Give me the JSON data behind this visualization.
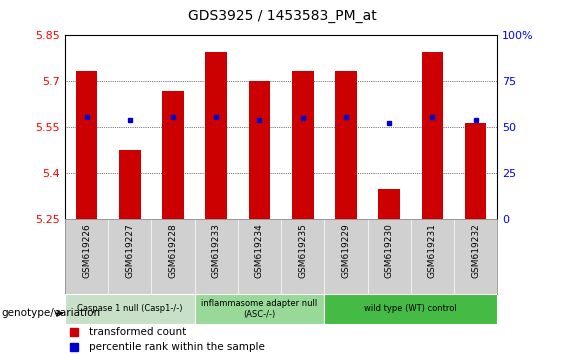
{
  "title": "GDS3925 / 1453583_PM_at",
  "samples": [
    "GSM619226",
    "GSM619227",
    "GSM619228",
    "GSM619233",
    "GSM619234",
    "GSM619235",
    "GSM619229",
    "GSM619230",
    "GSM619231",
    "GSM619232"
  ],
  "red_values": [
    5.735,
    5.475,
    5.67,
    5.795,
    5.7,
    5.735,
    5.735,
    5.35,
    5.795,
    5.565
  ],
  "blue_values": [
    5.585,
    5.575,
    5.585,
    5.585,
    5.575,
    5.58,
    5.585,
    5.565,
    5.585,
    5.575
  ],
  "y_min": 5.25,
  "y_max": 5.85,
  "y_ticks": [
    5.25,
    5.4,
    5.55,
    5.7,
    5.85
  ],
  "y_tick_labels": [
    "5.25",
    "5.4",
    "5.55",
    "5.7",
    "5.85"
  ],
  "right_y_ticks": [
    0,
    25,
    50,
    75,
    100
  ],
  "right_y_tick_labels": [
    "0",
    "25",
    "50",
    "75",
    "100%"
  ],
  "bar_color": "#cc0000",
  "dot_color": "#0000cc",
  "bg_color": "#d0d0d0",
  "legend_label_red": "transformed count",
  "legend_label_blue": "percentile rank within the sample",
  "bar_width": 0.5,
  "group_info": [
    {
      "label": "Caspase 1 null (Casp1-/-)",
      "start": 0,
      "end": 3,
      "color": "#c8e0c8"
    },
    {
      "label": "inflammasome adapter null\n(ASC-/-)",
      "start": 3,
      "end": 6,
      "color": "#98d898"
    },
    {
      "label": "wild type (WT) control",
      "start": 6,
      "end": 10,
      "color": "#44bb44"
    }
  ]
}
